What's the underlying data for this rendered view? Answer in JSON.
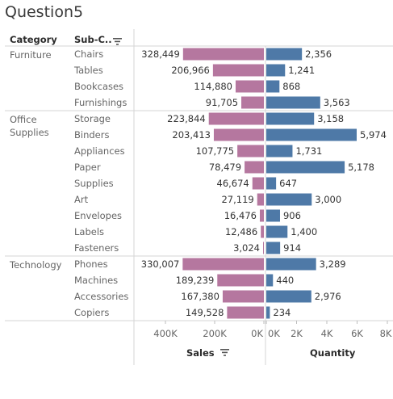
{
  "title": "Question5",
  "headers": {
    "category": "Category",
    "subcategory": "Sub-C..",
    "sort_icon": "sort-descending-icon"
  },
  "colors": {
    "sales": "#b5779f",
    "quantity": "#4e79a7",
    "divider": "#d4d4d4",
    "gridline": "#e6e6e6"
  },
  "chart_data": {
    "type": "bar",
    "orientation": "horizontal",
    "layout": "diverging",
    "groups": [
      {
        "category": "Furniture",
        "rows": [
          {
            "sub": "Chairs",
            "sales": 328449,
            "sales_label": "328,449",
            "qty": 2356,
            "qty_label": "2,356"
          },
          {
            "sub": "Tables",
            "sales": 206966,
            "sales_label": "206,966",
            "qty": 1241,
            "qty_label": "1,241"
          },
          {
            "sub": "Bookcases",
            "sales": 114880,
            "sales_label": "114,880",
            "qty": 868,
            "qty_label": "868"
          },
          {
            "sub": "Furnishings",
            "sales": 91705,
            "sales_label": "91,705",
            "qty": 3563,
            "qty_label": "3,563"
          }
        ]
      },
      {
        "category": "Office Supplies",
        "category_lines": [
          "Office",
          "Supplies"
        ],
        "rows": [
          {
            "sub": "Storage",
            "sales": 223844,
            "sales_label": "223,844",
            "qty": 3158,
            "qty_label": "3,158"
          },
          {
            "sub": "Binders",
            "sales": 203413,
            "sales_label": "203,413",
            "qty": 5974,
            "qty_label": "5,974"
          },
          {
            "sub": "Appliances",
            "sales": 107775,
            "sales_label": "107,775",
            "qty": 1731,
            "qty_label": "1,731"
          },
          {
            "sub": "Paper",
            "sales": 78479,
            "sales_label": "78,479",
            "qty": 5178,
            "qty_label": "5,178"
          },
          {
            "sub": "Supplies",
            "sales": 46674,
            "sales_label": "46,674",
            "qty": 647,
            "qty_label": "647"
          },
          {
            "sub": "Art",
            "sales": 27119,
            "sales_label": "27,119",
            "qty": 3000,
            "qty_label": "3,000"
          },
          {
            "sub": "Envelopes",
            "sales": 16476,
            "sales_label": "16,476",
            "qty": 906,
            "qty_label": "906"
          },
          {
            "sub": "Labels",
            "sales": 12486,
            "sales_label": "12,486",
            "qty": 1400,
            "qty_label": "1,400"
          },
          {
            "sub": "Fasteners",
            "sales": 3024,
            "sales_label": "3,024",
            "qty": 914,
            "qty_label": "914"
          }
        ]
      },
      {
        "category": "Technology",
        "rows": [
          {
            "sub": "Phones",
            "sales": 330007,
            "sales_label": "330,007",
            "qty": 3289,
            "qty_label": "3,289"
          },
          {
            "sub": "Machines",
            "sales": 189239,
            "sales_label": "189,239",
            "qty": 440,
            "qty_label": "440"
          },
          {
            "sub": "Accessories",
            "sales": 167380,
            "sales_label": "167,380",
            "qty": 2976,
            "qty_label": "2,976"
          },
          {
            "sub": "Copiers",
            "sales": 149528,
            "sales_label": "149,528",
            "qty": 234,
            "qty_label": "234"
          }
        ]
      }
    ],
    "sales_axis": {
      "label": "Sales",
      "reversed": true,
      "ticks": [
        400000,
        200000,
        0
      ],
      "tick_labels": [
        "400K",
        "200K",
        "0K"
      ],
      "xlim": [
        0,
        525000
      ]
    },
    "quantity_axis": {
      "label": "Quantity",
      "ticks": [
        0,
        2000,
        4000,
        6000,
        8000
      ],
      "tick_labels": [
        "0K",
        "2K",
        "4K",
        "6K",
        "8K"
      ],
      "xlim": [
        0,
        7900
      ]
    },
    "sales_axis_sorted": true,
    "grid": false
  }
}
